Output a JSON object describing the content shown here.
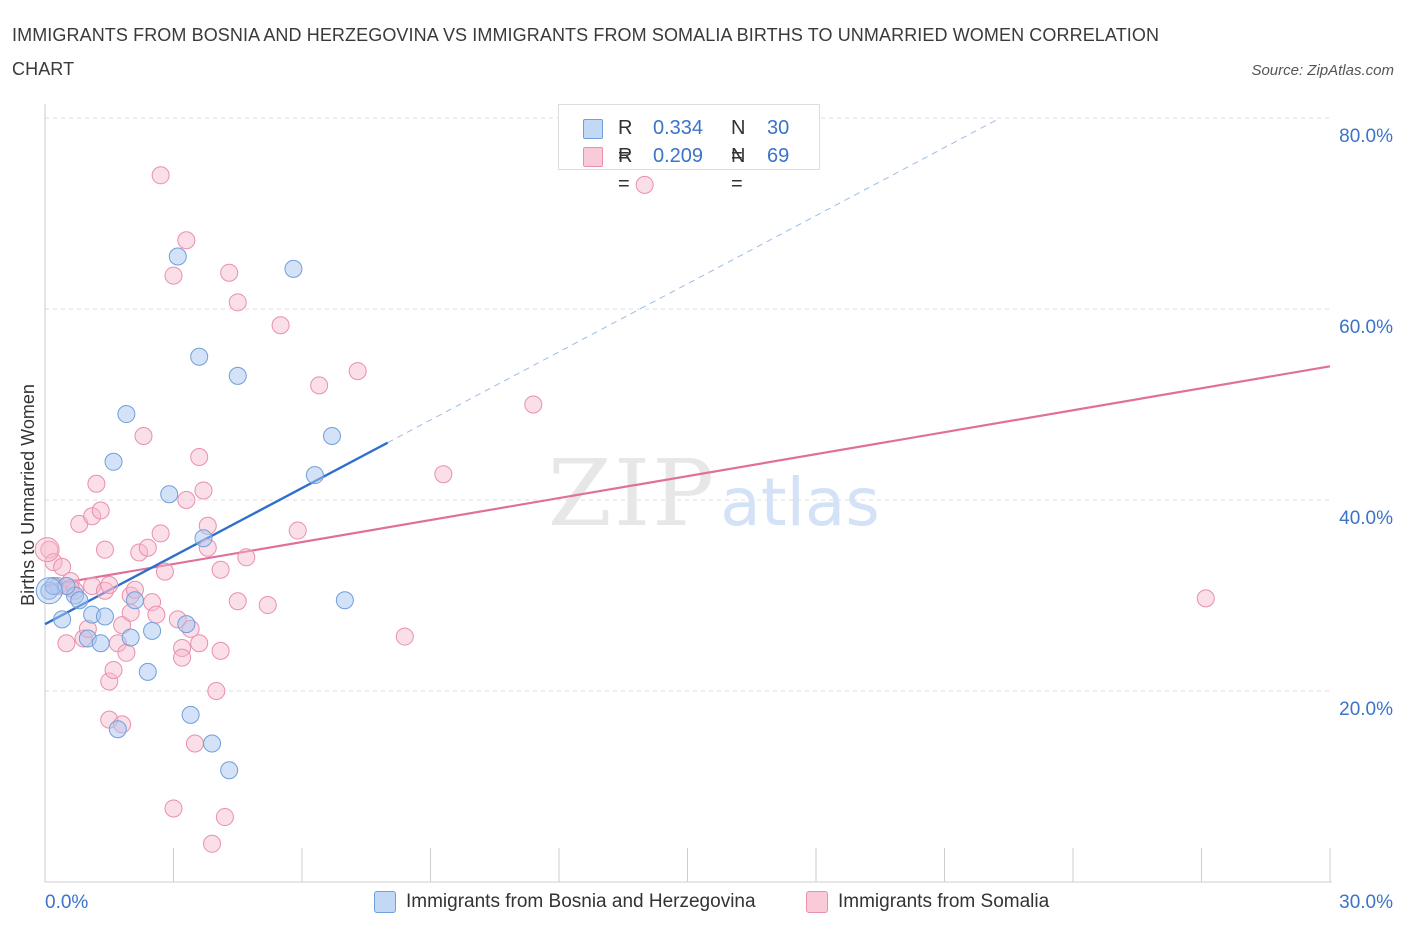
{
  "title": "IMMIGRANTS FROM BOSNIA AND HERZEGOVINA VS IMMIGRANTS FROM SOMALIA BIRTHS TO UNMARRIED WOMEN CORRELATION CHART",
  "source": "Source: ZipAtlas.com",
  "watermark": {
    "zip": "ZIP",
    "atlas": "atlas"
  },
  "legend": {
    "rows": [
      {
        "r_label": "R =",
        "r_value": "0.334",
        "n_label": "N =",
        "n_value": "30",
        "color": "#a9c6f0"
      },
      {
        "r_label": "R =",
        "r_value": "0.209",
        "n_label": "N =",
        "n_value": "69",
        "color": "#f7b8cb"
      }
    ]
  },
  "bottom_legend": {
    "series1": "Immigrants from Bosnia and Herzegovina",
    "series2": "Immigrants from Somalia"
  },
  "colors": {
    "blue_fill": "#a9c6f0",
    "blue_stroke": "#6f9fdc",
    "blue_line": "#2f6fcb",
    "pink_fill": "#f7b8cb",
    "pink_stroke": "#ea8fac",
    "pink_line": "#e0709a",
    "axis_text": "#3b73c9",
    "grid": "#dddddd"
  },
  "chart_data": {
    "type": "scatter",
    "title": "IMMIGRANTS FROM BOSNIA AND HERZEGOVINA VS IMMIGRANTS FROM SOMALIA BIRTHS TO UNMARRIED WOMEN CORRELATION CHART",
    "xlabel": "",
    "ylabel": "Births to Unmarried Women",
    "xlim": [
      0,
      30
    ],
    "ylim": [
      0,
      80
    ],
    "x_tick_labels": [
      {
        "value": 0,
        "label": "0.0%"
      },
      {
        "value": 30,
        "label": "30.0%"
      }
    ],
    "y_tick_labels": [
      {
        "value": 20,
        "label": "20.0%"
      },
      {
        "value": 40,
        "label": "40.0%"
      },
      {
        "value": 60,
        "label": "60.0%"
      },
      {
        "value": 80,
        "label": "80.0%"
      }
    ],
    "series": [
      {
        "name": "Immigrants from Bosnia and Herzegovina",
        "color": "blue",
        "points": [
          [
            0.1,
            30.5
          ],
          [
            0.2,
            31.0
          ],
          [
            0.4,
            27.5
          ],
          [
            0.7,
            30.0
          ],
          [
            0.8,
            29.5
          ],
          [
            1.0,
            25.5
          ],
          [
            1.1,
            28.0
          ],
          [
            1.3,
            25.0
          ],
          [
            1.4,
            27.8
          ],
          [
            1.6,
            44.0
          ],
          [
            1.9,
            49.0
          ],
          [
            2.0,
            25.6
          ],
          [
            2.1,
            29.5
          ],
          [
            2.4,
            22.0
          ],
          [
            2.5,
            26.3
          ],
          [
            2.9,
            40.6
          ],
          [
            3.1,
            65.5
          ],
          [
            3.3,
            27.0
          ],
          [
            3.4,
            17.5
          ],
          [
            3.6,
            55.0
          ],
          [
            3.7,
            36.0
          ],
          [
            3.9,
            14.5
          ],
          [
            4.3,
            11.7
          ],
          [
            4.5,
            53.0
          ],
          [
            5.8,
            64.2
          ],
          [
            6.3,
            42.6
          ],
          [
            6.7,
            46.7
          ],
          [
            7.0,
            29.5
          ],
          [
            1.7,
            16.0
          ],
          [
            0.5,
            31.0
          ]
        ],
        "trend": {
          "x": [
            0,
            8
          ],
          "y": [
            27.0,
            46.0
          ],
          "dashed_extension": {
            "x": [
              8,
              22.3
            ],
            "y": [
              46.0,
              80.0
            ]
          }
        }
      },
      {
        "name": "Immigrants from Somalia",
        "color": "pink",
        "points": [
          [
            0.1,
            34.8
          ],
          [
            0.2,
            33.5
          ],
          [
            0.3,
            31.0
          ],
          [
            0.4,
            33.0
          ],
          [
            0.5,
            25.0
          ],
          [
            0.6,
            31.5
          ],
          [
            0.7,
            30.5
          ],
          [
            0.8,
            37.5
          ],
          [
            0.9,
            25.5
          ],
          [
            1.0,
            26.5
          ],
          [
            1.1,
            31.0
          ],
          [
            1.1,
            38.3
          ],
          [
            1.2,
            41.7
          ],
          [
            1.3,
            38.9
          ],
          [
            1.4,
            34.8
          ],
          [
            1.4,
            30.5
          ],
          [
            1.5,
            17.0
          ],
          [
            1.5,
            21.0
          ],
          [
            1.6,
            22.2
          ],
          [
            1.7,
            25.0
          ],
          [
            1.8,
            26.9
          ],
          [
            1.8,
            16.5
          ],
          [
            1.9,
            24.0
          ],
          [
            2.0,
            30.0
          ],
          [
            2.0,
            28.2
          ],
          [
            2.1,
            30.6
          ],
          [
            2.2,
            34.5
          ],
          [
            2.3,
            46.7
          ],
          [
            2.4,
            35.0
          ],
          [
            2.5,
            29.3
          ],
          [
            2.6,
            28.0
          ],
          [
            2.7,
            74.0
          ],
          [
            2.7,
            36.5
          ],
          [
            2.8,
            32.5
          ],
          [
            3.0,
            63.5
          ],
          [
            3.0,
            7.7
          ],
          [
            3.1,
            27.5
          ],
          [
            3.2,
            24.5
          ],
          [
            3.2,
            23.5
          ],
          [
            3.3,
            40.0
          ],
          [
            3.3,
            67.2
          ],
          [
            3.4,
            26.5
          ],
          [
            3.5,
            14.5
          ],
          [
            3.6,
            25.0
          ],
          [
            3.6,
            44.5
          ],
          [
            3.7,
            41.0
          ],
          [
            3.8,
            35.0
          ],
          [
            3.8,
            37.3
          ],
          [
            3.9,
            4.0
          ],
          [
            4.0,
            20.0
          ],
          [
            4.1,
            32.7
          ],
          [
            4.1,
            24.2
          ],
          [
            4.2,
            6.8
          ],
          [
            4.3,
            63.8
          ],
          [
            4.5,
            60.7
          ],
          [
            4.5,
            29.4
          ],
          [
            4.7,
            34.0
          ],
          [
            5.2,
            29.0
          ],
          [
            5.5,
            58.3
          ],
          [
            5.9,
            36.8
          ],
          [
            6.4,
            52.0
          ],
          [
            7.3,
            53.5
          ],
          [
            8.4,
            25.7
          ],
          [
            9.3,
            42.7
          ],
          [
            11.4,
            50.0
          ],
          [
            14.0,
            73.0
          ],
          [
            27.1,
            29.7
          ],
          [
            0.6,
            30.8
          ],
          [
            1.5,
            31.1
          ]
        ],
        "trend": {
          "x": [
            0,
            30
          ],
          "y": [
            31.0,
            54.0
          ]
        }
      }
    ]
  }
}
